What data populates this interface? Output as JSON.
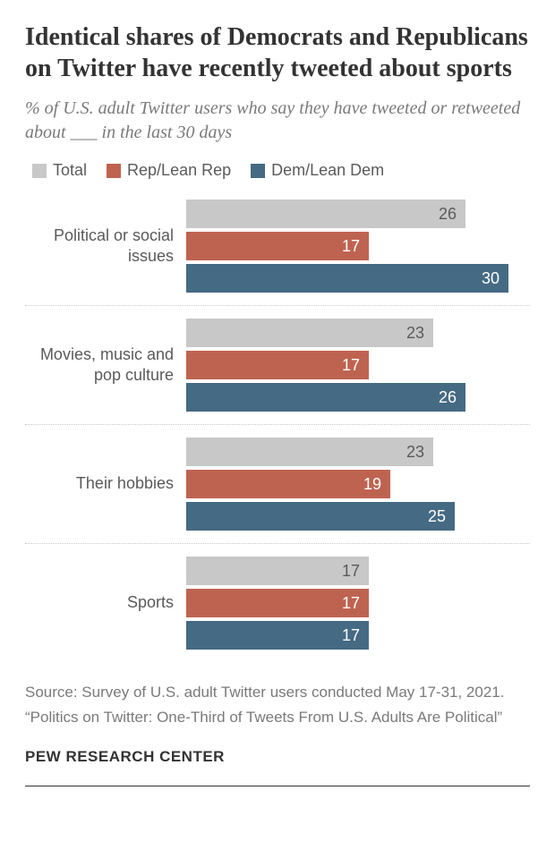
{
  "title": "Identical shares of Democrats and Republicans on Twitter have recently tweeted about sports",
  "subtitle": "% of U.S. adult Twitter users who say they have tweeted or retweeted about ___ in the last 30 days",
  "title_fontsize": 28,
  "subtitle_fontsize": 20,
  "legend": [
    {
      "label": "Total",
      "color": "#c8c8c8"
    },
    {
      "label": "Rep/Lean Rep",
      "color": "#bf6351"
    },
    {
      "label": "Dem/Lean Dem",
      "color": "#456a83"
    }
  ],
  "legend_fontsize": 18,
  "groups": [
    {
      "label": "Political or social issues",
      "bars": [
        {
          "value": 26,
          "color": "#c8c8c8",
          "text_color": "#5a5a5a"
        },
        {
          "value": 17,
          "color": "#bf6351",
          "text_color": "#ffffff"
        },
        {
          "value": 30,
          "color": "#456a83",
          "text_color": "#ffffff"
        }
      ]
    },
    {
      "label": "Movies, music and pop culture",
      "bars": [
        {
          "value": 23,
          "color": "#c8c8c8",
          "text_color": "#5a5a5a"
        },
        {
          "value": 17,
          "color": "#bf6351",
          "text_color": "#ffffff"
        },
        {
          "value": 26,
          "color": "#456a83",
          "text_color": "#ffffff"
        }
      ]
    },
    {
      "label": "Their hobbies",
      "bars": [
        {
          "value": 23,
          "color": "#c8c8c8",
          "text_color": "#5a5a5a"
        },
        {
          "value": 19,
          "color": "#bf6351",
          "text_color": "#ffffff"
        },
        {
          "value": 25,
          "color": "#456a83",
          "text_color": "#ffffff"
        }
      ]
    },
    {
      "label": "Sports",
      "bars": [
        {
          "value": 17,
          "color": "#c8c8c8",
          "text_color": "#5a5a5a"
        },
        {
          "value": 17,
          "color": "#bf6351",
          "text_color": "#ffffff"
        },
        {
          "value": 17,
          "color": "#456a83",
          "text_color": "#ffffff"
        }
      ]
    }
  ],
  "bar_label_fontsize": 18,
  "group_label_fontsize": 18,
  "max_value": 32,
  "source": "Source: Survey of U.S. adult Twitter users conducted May 17-31, 2021.",
  "report": "“Politics on Twitter: One-Third of Tweets From U.S. Adults Are Political”",
  "source_fontsize": 17,
  "org": "PEW RESEARCH CENTER",
  "org_fontsize": 17
}
